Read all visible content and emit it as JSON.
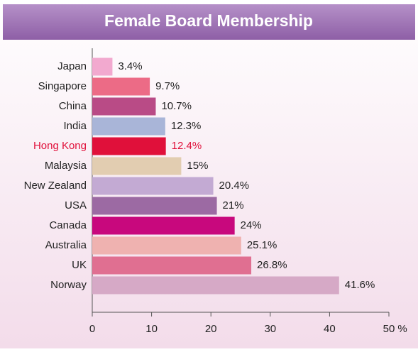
{
  "chart_data": {
    "type": "bar",
    "orientation": "horizontal",
    "title": "Female Board Membership",
    "categories": [
      "Japan",
      "Singapore",
      "China",
      "India",
      "Hong Kong",
      "Malaysia",
      "New Zealand",
      "USA",
      "Canada",
      "Australia",
      "UK",
      "Norway"
    ],
    "values": [
      3.4,
      9.7,
      10.7,
      12.3,
      12.4,
      15,
      20.4,
      21,
      24,
      25.1,
      26.8,
      41.6
    ],
    "value_labels": [
      "3.4%",
      "9.7%",
      "10.7%",
      "12.3%",
      "12.4%",
      "15%",
      "20.4%",
      "21%",
      "24%",
      "25.1%",
      "26.8%",
      "41.6%"
    ],
    "colors": [
      "#f2a9cf",
      "#ec6b86",
      "#b94b86",
      "#a9b5d8",
      "#e0103a",
      "#e2cdb1",
      "#c3aad3",
      "#9c6aa3",
      "#c8087d",
      "#efb2b0",
      "#e06f91",
      "#d6a9c6"
    ],
    "highlight_index": 4,
    "highlight_color": "#e0103a",
    "xlim": [
      0,
      50
    ],
    "xticks": [
      0,
      10,
      20,
      30,
      40,
      50
    ],
    "xlabel": "%"
  }
}
